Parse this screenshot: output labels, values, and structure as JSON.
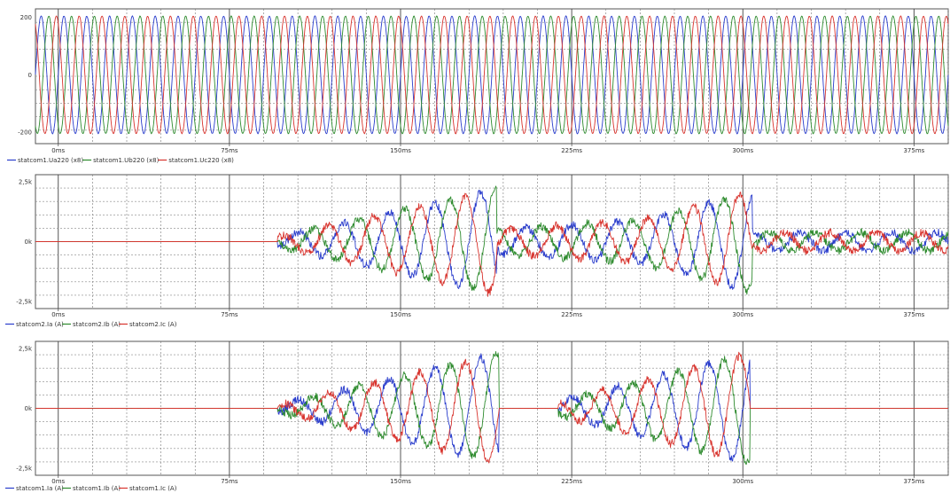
{
  "chart_data": [
    {
      "type": "line",
      "x_unit": "ms",
      "xlim": [
        -10,
        390
      ],
      "ylim": [
        -240,
        230
      ],
      "y_ticks": [
        200,
        0,
        -200
      ],
      "y_tick_labels": [
        "200",
        "0",
        "-200"
      ],
      "x_ticks": [
        0,
        75,
        150,
        225,
        300,
        375
      ],
      "x_tick_labels": [
        "0ms",
        "75ms",
        "150ms",
        "225ms",
        "300ms",
        "375ms"
      ],
      "grid": true,
      "legend_position": "bottom-left",
      "waveform": {
        "frequency_hz": 100,
        "segments": [
          {
            "from": -10,
            "to": 390,
            "amplitude": 205
          }
        ],
        "noise": 1
      },
      "series": [
        {
          "name": "statcom1.Ua220 (x8)",
          "color": "#2a3dcc",
          "phase_deg": 0
        },
        {
          "name": "statcom1.Ub220 (x8)",
          "color": "#2e8b2e",
          "phase_deg": -120
        },
        {
          "name": "statcom1.Uc220 (x8)",
          "color": "#d8342e",
          "phase_deg": 120
        }
      ]
    },
    {
      "type": "line",
      "x_unit": "ms",
      "xlim": [
        -10,
        390
      ],
      "ylim": [
        -2800,
        2800
      ],
      "y_ticks": [
        2500,
        0,
        -2500
      ],
      "y_tick_labels": [
        "2,5k",
        "0k",
        "-2,5k"
      ],
      "x_ticks": [
        0,
        75,
        150,
        225,
        300,
        375
      ],
      "x_tick_labels": [
        "0ms",
        "75ms",
        "150ms",
        "225ms",
        "300ms",
        "375ms"
      ],
      "grid": true,
      "legend_position": "bottom-left",
      "waveform": {
        "frequency_hz": 50,
        "segments": [
          {
            "from": -10,
            "to": 96,
            "amplitude": 0
          },
          {
            "from": 96,
            "to": 192,
            "amplitude_start": 200,
            "amplitude_end": 2200
          },
          {
            "from": 192,
            "to": 255,
            "amplitude_start": 500,
            "amplitude_end": 900
          },
          {
            "from": 255,
            "to": 304,
            "amplitude_start": 900,
            "amplitude_end": 2100
          },
          {
            "from": 304,
            "to": 390,
            "amplitude": 380
          }
        ],
        "noise": 170
      },
      "series": [
        {
          "name": "statcom2.Ia (A)",
          "color": "#2a3dcc",
          "phase_deg": 0
        },
        {
          "name": "statcom2.Ib (A)",
          "color": "#2e8b2e",
          "phase_deg": -120
        },
        {
          "name": "statcom2.Ic (A)",
          "color": "#d8342e",
          "phase_deg": 120
        }
      ]
    },
    {
      "type": "line",
      "x_unit": "ms",
      "xlim": [
        -10,
        390
      ],
      "ylim": [
        -2800,
        2800
      ],
      "y_ticks": [
        2500,
        0,
        -2500
      ],
      "y_tick_labels": [
        "2,5k",
        "0k",
        "-2,5k"
      ],
      "x_ticks": [
        0,
        75,
        150,
        225,
        300,
        375
      ],
      "x_tick_labels": [
        "0ms",
        "75ms",
        "150ms",
        "225ms",
        "300ms",
        "375ms"
      ],
      "grid": true,
      "legend_position": "bottom-left",
      "waveform": {
        "frequency_hz": 50,
        "segments": [
          {
            "from": -10,
            "to": 96,
            "amplitude": 0
          },
          {
            "from": 96,
            "to": 193,
            "amplitude_start": 150,
            "amplitude_end": 2300
          },
          {
            "from": 193,
            "to": 219,
            "amplitude": 0
          },
          {
            "from": 219,
            "to": 303,
            "amplitude_start": 300,
            "amplitude_end": 2300
          },
          {
            "from": 303,
            "to": 390,
            "amplitude": 0
          }
        ],
        "noise": 170
      },
      "series": [
        {
          "name": "statcom1.Ia (A)",
          "color": "#2a3dcc",
          "phase_deg": 0
        },
        {
          "name": "statcom1.Ib (A)",
          "color": "#2e8b2e",
          "phase_deg": -120
        },
        {
          "name": "statcom1.Ic (A)",
          "color": "#d8342e",
          "phase_deg": 120
        }
      ]
    }
  ]
}
